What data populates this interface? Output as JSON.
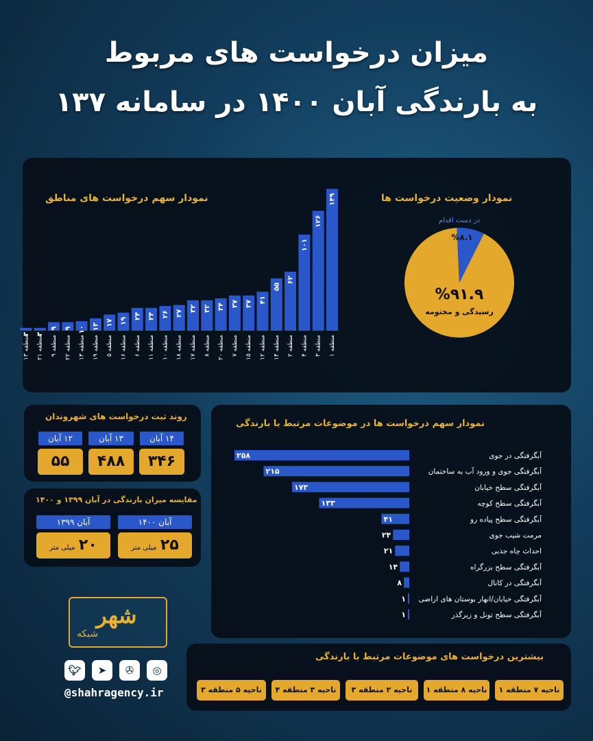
{
  "header": {
    "line1": "میزان درخواست های مربوط",
    "line2": "به بارندگی آبان ۱۴۰۰ در سامانه ۱۳۷"
  },
  "region_chart": {
    "title": "نمودار سهم درخواست های مناطق"
  },
  "status_chart": {
    "title": "نمودار وضعیت درخواست ها"
  },
  "topic_chart": {
    "title": "نمودار سهم درخواست ها در موضوعات مرتبط با بارندگی"
  },
  "trend": {
    "title": "روند ثبت درخواست های شهروندان",
    "items": [
      {
        "date": "۱۴ آبان",
        "value": "۳۴۶"
      },
      {
        "date": "۱۳ آبان",
        "value": "۴۸۸"
      },
      {
        "date": "۱۲ آبان",
        "value": "۵۵"
      }
    ]
  },
  "rain": {
    "title": "مقایسه میزان بارندگی در آبان ۱۳۹۹ و ۱۴۰۰",
    "items": [
      {
        "period": "آبان ۱۴۰۰",
        "value": "۲۵",
        "unit": "میلی متر"
      },
      {
        "period": "آبان ۱۳۹۹",
        "value": "۲۰",
        "unit": "میلی متر"
      }
    ]
  },
  "top_regions": {
    "title": "بیشترین درخواست های موضوعات مرتبط با بارندگی",
    "items": [
      "ناحیه ۷ منطقه ۱",
      "ناحیه ۸ منطقه ۱",
      "ناحیه ۲ منطقه ۳",
      "ناحیه ۳ منطقه ۴",
      "ناحیه ۵ منطقه ۳"
    ]
  },
  "brand": {
    "logo_text": "شهر",
    "logo_sub": "شبکه",
    "handle": "@shahragency.ir"
  },
  "social_icons": [
    "instagram-icon",
    "aparat-icon",
    "telegram-icon",
    "twitter-icon"
  ],
  "colors": {
    "bar": "#2a57c9",
    "gold": "#e4a82c",
    "panel": "#060e18"
  },
  "chart_data": [
    {
      "type": "bar",
      "title": "نمودار سهم درخواست های مناطق",
      "categories": [
        "منطقه ۱",
        "منطقه ۳",
        "منطقه ۴",
        "منطقه ۲",
        "منطقه ۱۴",
        "منطقه ۱۲",
        "منطقه ۱۵",
        "منطقه ۷",
        "منطقه ۲۰",
        "منطقه ۸",
        "منطقه ۱۷",
        "منطقه ۱۸",
        "منطقه ۱۰",
        "منطقه ۱۱",
        "منطقه ۶",
        "منطقه ۱۶",
        "منطقه ۵",
        "منطقه ۱۹",
        "منطقه ۱۳",
        "منطقه ۲۲",
        "منطقه ۹",
        "منطقه ۲۱",
        "منطقه ۱۳"
      ],
      "values": [
        149,
        126,
        101,
        62,
        55,
        41,
        37,
        37,
        34,
        32,
        32,
        27,
        26,
        24,
        24,
        19,
        17,
        13,
        10,
        9,
        9,
        3,
        3
      ],
      "labels": [
        "۱۴۹",
        "۱۲۶",
        "۱۰۱",
        "۶۲",
        "۵۵",
        "۴۱",
        "۳۷",
        "۳۷",
        "۳۴",
        "۳۲",
        "۳۲",
        "۲۷",
        "۲۶",
        "۲۴",
        "۲۴",
        "۱۹",
        "۱۷",
        "۱۳",
        "۱۰",
        "۹",
        "۹",
        "۳",
        "۳"
      ],
      "ylim": [
        0,
        150
      ]
    },
    {
      "type": "pie",
      "title": "نمودار وضعیت درخواست ها",
      "slices": [
        {
          "name": "رسیدگی و مختومه",
          "value": 91.9,
          "label": "%۹۱.۹",
          "color": "#e4a82c"
        },
        {
          "name": "در دست اقدام",
          "value": 8.1,
          "label": "%۸.۱",
          "color": "#2a57c9"
        }
      ]
    },
    {
      "type": "bar",
      "orientation": "horizontal",
      "title": "نمودار سهم درخواست ها در موضوعات مرتبط با بارندگی",
      "categories": [
        "آبگرفتگی در جوی",
        "آبگرفتگی جوی و ورود آب به ساختمان",
        "آبگرفتگی سطح خیابان",
        "آبگرفتگی سطح کوچه",
        "آبگرفتگی سطح پیاده رو",
        "مرمت شیب جوی",
        "احداث چاه جذبی",
        "آبگرفتگی سطح بزرگراه",
        "آبگرفتگی در کانال",
        "آبگرفتگی خیابان/انهار بوستان های اراضی",
        "آبگرفتگی سطح تونل و زیرگذر"
      ],
      "values": [
        258,
        215,
        173,
        133,
        41,
        24,
        21,
        14,
        8,
        1,
        1
      ],
      "labels": [
        "۲۵۸",
        "۲۱۵",
        "۱۷۳",
        "۱۳۳",
        "۴۱",
        "۲۴",
        "۲۱",
        "۱۴",
        "۸",
        "۱",
        "۱"
      ],
      "xlim": [
        0,
        258
      ]
    }
  ]
}
